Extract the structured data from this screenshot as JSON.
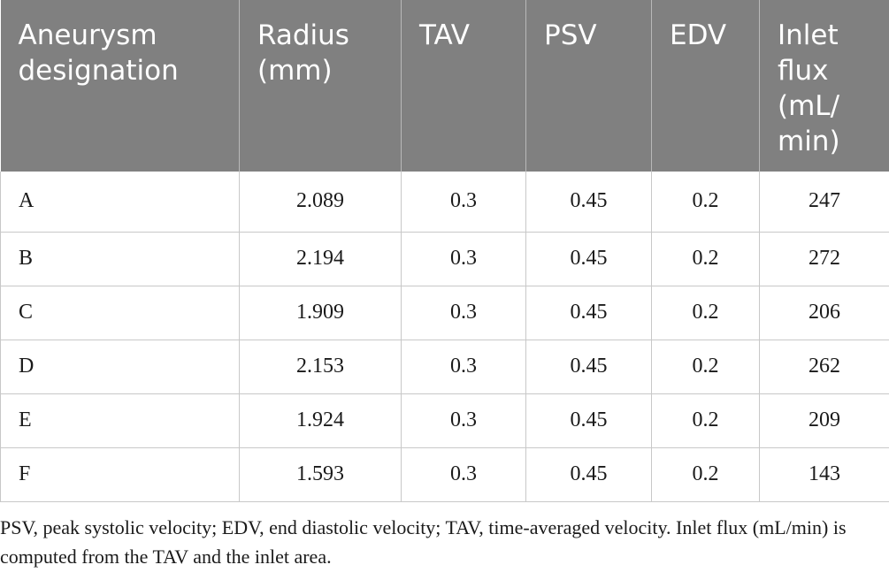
{
  "table": {
    "headers": [
      "Aneurysm designation",
      "Radius (mm)",
      "TAV",
      "PSV",
      "EDV",
      "Inlet flux (mL/ min)"
    ],
    "rows": [
      [
        "A",
        "2.089",
        "0.3",
        "0.45",
        "0.2",
        "247"
      ],
      [
        "B",
        "2.194",
        "0.3",
        "0.45",
        "0.2",
        "272"
      ],
      [
        "C",
        "1.909",
        "0.3",
        "0.45",
        "0.2",
        "206"
      ],
      [
        "D",
        "2.153",
        "0.3",
        "0.45",
        "0.2",
        "262"
      ],
      [
        "E",
        "1.924",
        "0.3",
        "0.45",
        "0.2",
        "209"
      ],
      [
        "F",
        "1.593",
        "0.3",
        "0.45",
        "0.2",
        "143"
      ]
    ]
  },
  "footnote": "PSV, peak systolic velocity; EDV, end diastolic velocity; TAV, time-averaged velocity. Inlet flux (mL/min) is computed from the TAV and the inlet area.",
  "colors": {
    "header_bg": "#808080",
    "header_text": "#ffffff",
    "grid": "#c8c8c8"
  }
}
